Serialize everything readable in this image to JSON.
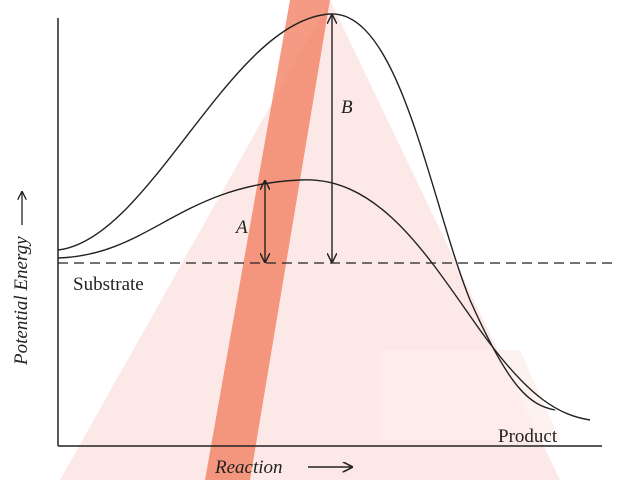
{
  "y_axis_label": "Potential Energy",
  "x_axis_label": "Reaction",
  "substrate_label": "Substrate",
  "product_label": "Product",
  "barrier_a_label": "A",
  "barrier_b_label": "B"
}
